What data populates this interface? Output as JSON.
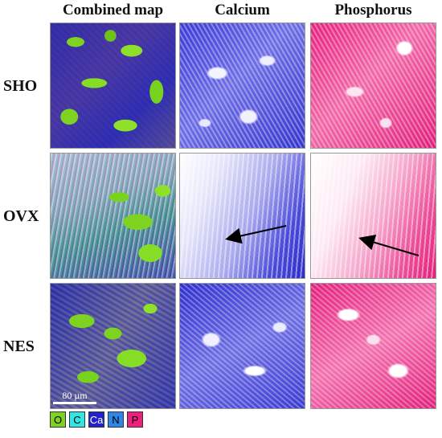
{
  "columns": [
    "Combined map",
    "Calcium",
    "Phosphorus"
  ],
  "rows": [
    "SHO",
    "OVX",
    "NES"
  ],
  "scale_bar": "80 µm",
  "legend": [
    {
      "label": "O",
      "color": "#7ed321"
    },
    {
      "label": "C",
      "color": "#33e6e6"
    },
    {
      "label": "Ca",
      "color": "#2222cc"
    },
    {
      "label": "N",
      "color": "#2f86e8"
    },
    {
      "label": "P",
      "color": "#ee1f7e"
    }
  ]
}
